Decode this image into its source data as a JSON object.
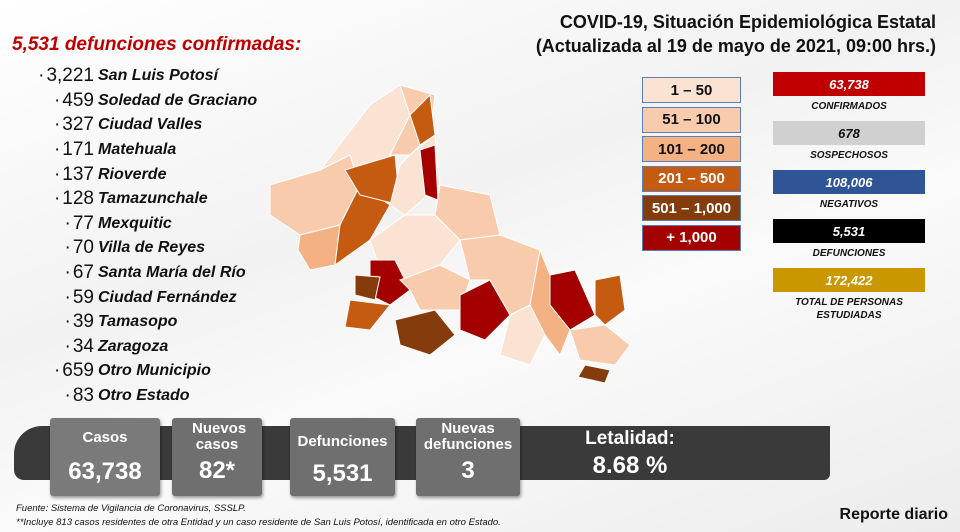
{
  "title": {
    "line1": "COVID-19, Situación Epidemiológica Estatal",
    "line2": "(Actualizada al 19 de mayo de 2021, 09:00 hrs.)"
  },
  "deaths_header": "5,531 defunciones confirmadas:",
  "deaths_by_municipality": [
    {
      "count": "3,221",
      "name": "San Luis Potosí"
    },
    {
      "count": "459",
      "name": "Soledad de Graciano"
    },
    {
      "count": "327",
      "name": "Ciudad Valles"
    },
    {
      "count": "171",
      "name": "Matehuala"
    },
    {
      "count": "137",
      "name": "Rioverde"
    },
    {
      "count": "128",
      "name": "Tamazunchale"
    },
    {
      "count": "77",
      "name": "Mexquitic"
    },
    {
      "count": "70",
      "name": "Villa de Reyes"
    },
    {
      "count": "67",
      "name": "Santa María del Río"
    },
    {
      "count": "59",
      "name": "Ciudad Fernández"
    },
    {
      "count": "39",
      "name": "Tamasopo"
    },
    {
      "count": "34",
      "name": "Zaragoza"
    },
    {
      "count": "659",
      "name": "Otro Municipio"
    },
    {
      "count": "83",
      "name": "Otro Estado"
    }
  ],
  "legend": [
    {
      "label": "1 – 50",
      "color": "#fbe3d4",
      "text": "#111"
    },
    {
      "label": "51 – 100",
      "color": "#f8cbad",
      "text": "#111"
    },
    {
      "label": "101 – 200",
      "color": "#f4b183",
      "text": "#111"
    },
    {
      "label": "201 – 500",
      "color": "#c55a11",
      "text": "#fff"
    },
    {
      "label": "501 – 1,000",
      "color": "#843c0c",
      "text": "#fff"
    },
    {
      "label": "+ 1,000",
      "color": "#a50000",
      "text": "#fff"
    }
  ],
  "stats": [
    {
      "value": "63,738",
      "label": "CONFIRMADOS",
      "color": "#c00000",
      "text": "#fff"
    },
    {
      "value": "678",
      "label": "SOSPECHOSOS",
      "color": "#d0d0d0",
      "text": "#111"
    },
    {
      "value": "108,006",
      "label": "NEGATIVOS",
      "color": "#2f5597",
      "text": "#fff"
    },
    {
      "value": "5,531",
      "label": "DEFUNCIONES",
      "color": "#000000",
      "text": "#fff"
    },
    {
      "value": "172,422",
      "label": "TOTAL DE PERSONAS ESTUDIADAS",
      "color": "#c99700",
      "text": "#fff"
    }
  ],
  "summary": {
    "casos": {
      "label": "Casos",
      "value": "63,738"
    },
    "nuevos_casos": {
      "label": "Nuevos casos",
      "value": "82*"
    },
    "defunciones": {
      "label": "Defunciones",
      "value": "5,531"
    },
    "nuevas_defunciones": {
      "label": "Nuevas defunciones",
      "value": "3"
    },
    "letalidad": {
      "label": "Letalidad:",
      "value": "8.68 %"
    }
  },
  "footer": {
    "source": "Fuente: Sistema de Vigilancia de Coronavirus, SSSLP.",
    "note": "**Incluye 813 casos residentes de otra Entidad y un caso residente de San Luis Potosí, identificada en otro Estado.",
    "report": "Reporte diario"
  }
}
